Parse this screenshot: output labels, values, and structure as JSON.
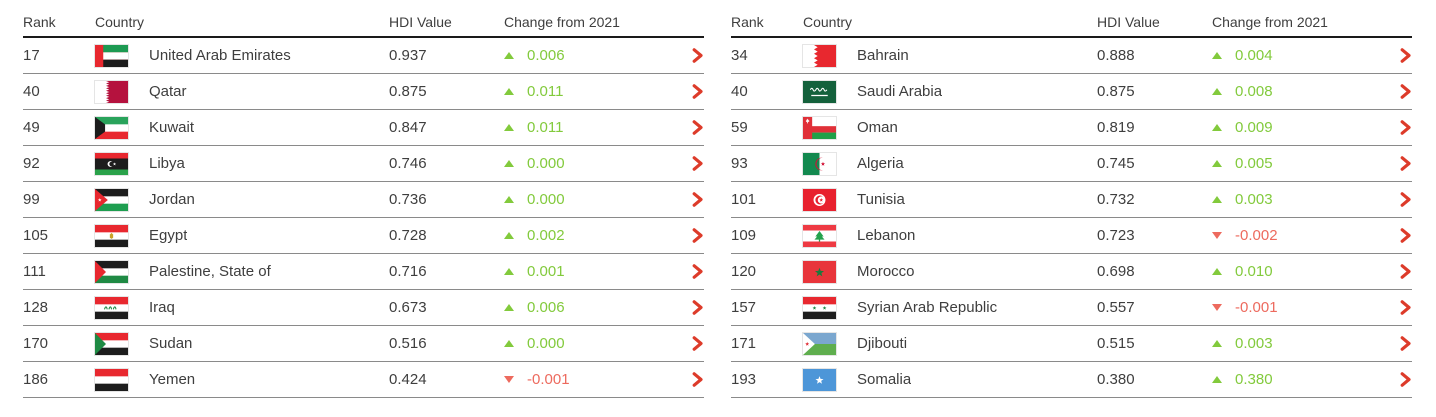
{
  "colors": {
    "positive": "#82ca3c",
    "negative": "#ed6a5e",
    "chevron": "#dd3b2a",
    "text": "#3e3e3e",
    "header_rule": "#1a1a1a",
    "row_rule": "#8a8a8a"
  },
  "columns": {
    "rank": "Rank",
    "country": "Country",
    "hdi": "HDI Value",
    "change": "Change from 2021"
  },
  "tables": [
    {
      "rows": [
        {
          "rank": "17",
          "country": "United Arab Emirates",
          "flag": "ae",
          "hdi": "0.937",
          "change": "0.006",
          "direction": "up"
        },
        {
          "rank": "40",
          "country": "Qatar",
          "flag": "qa",
          "hdi": "0.875",
          "change": "0.011",
          "direction": "up"
        },
        {
          "rank": "49",
          "country": "Kuwait",
          "flag": "kw",
          "hdi": "0.847",
          "change": "0.011",
          "direction": "up"
        },
        {
          "rank": "92",
          "country": "Libya",
          "flag": "ly",
          "hdi": "0.746",
          "change": "0.000",
          "direction": "up"
        },
        {
          "rank": "99",
          "country": "Jordan",
          "flag": "jo",
          "hdi": "0.736",
          "change": "0.000",
          "direction": "up"
        },
        {
          "rank": "105",
          "country": "Egypt",
          "flag": "eg",
          "hdi": "0.728",
          "change": "0.002",
          "direction": "up"
        },
        {
          "rank": "111",
          "country": "Palestine, State of",
          "flag": "ps",
          "hdi": "0.716",
          "change": "0.001",
          "direction": "up"
        },
        {
          "rank": "128",
          "country": "Iraq",
          "flag": "iq",
          "hdi": "0.673",
          "change": "0.006",
          "direction": "up"
        },
        {
          "rank": "170",
          "country": "Sudan",
          "flag": "sd",
          "hdi": "0.516",
          "change": "0.000",
          "direction": "up"
        },
        {
          "rank": "186",
          "country": "Yemen",
          "flag": "ye",
          "hdi": "0.424",
          "change": "-0.001",
          "direction": "down"
        }
      ]
    },
    {
      "rows": [
        {
          "rank": "34",
          "country": "Bahrain",
          "flag": "bh",
          "hdi": "0.888",
          "change": "0.004",
          "direction": "up"
        },
        {
          "rank": "40",
          "country": "Saudi Arabia",
          "flag": "sa",
          "hdi": "0.875",
          "change": "0.008",
          "direction": "up"
        },
        {
          "rank": "59",
          "country": "Oman",
          "flag": "om",
          "hdi": "0.819",
          "change": "0.009",
          "direction": "up"
        },
        {
          "rank": "93",
          "country": "Algeria",
          "flag": "dz",
          "hdi": "0.745",
          "change": "0.005",
          "direction": "up"
        },
        {
          "rank": "101",
          "country": "Tunisia",
          "flag": "tn",
          "hdi": "0.732",
          "change": "0.003",
          "direction": "up"
        },
        {
          "rank": "109",
          "country": "Lebanon",
          "flag": "lb",
          "hdi": "0.723",
          "change": "-0.002",
          "direction": "down"
        },
        {
          "rank": "120",
          "country": "Morocco",
          "flag": "ma",
          "hdi": "0.698",
          "change": "0.010",
          "direction": "up"
        },
        {
          "rank": "157",
          "country": "Syrian Arab Republic",
          "flag": "sy",
          "hdi": "0.557",
          "change": "-0.001",
          "direction": "down"
        },
        {
          "rank": "171",
          "country": "Djibouti",
          "flag": "dj",
          "hdi": "0.515",
          "change": "0.003",
          "direction": "up"
        },
        {
          "rank": "193",
          "country": "Somalia",
          "flag": "so",
          "hdi": "0.380",
          "change": "0.380",
          "direction": "up"
        }
      ]
    }
  ]
}
